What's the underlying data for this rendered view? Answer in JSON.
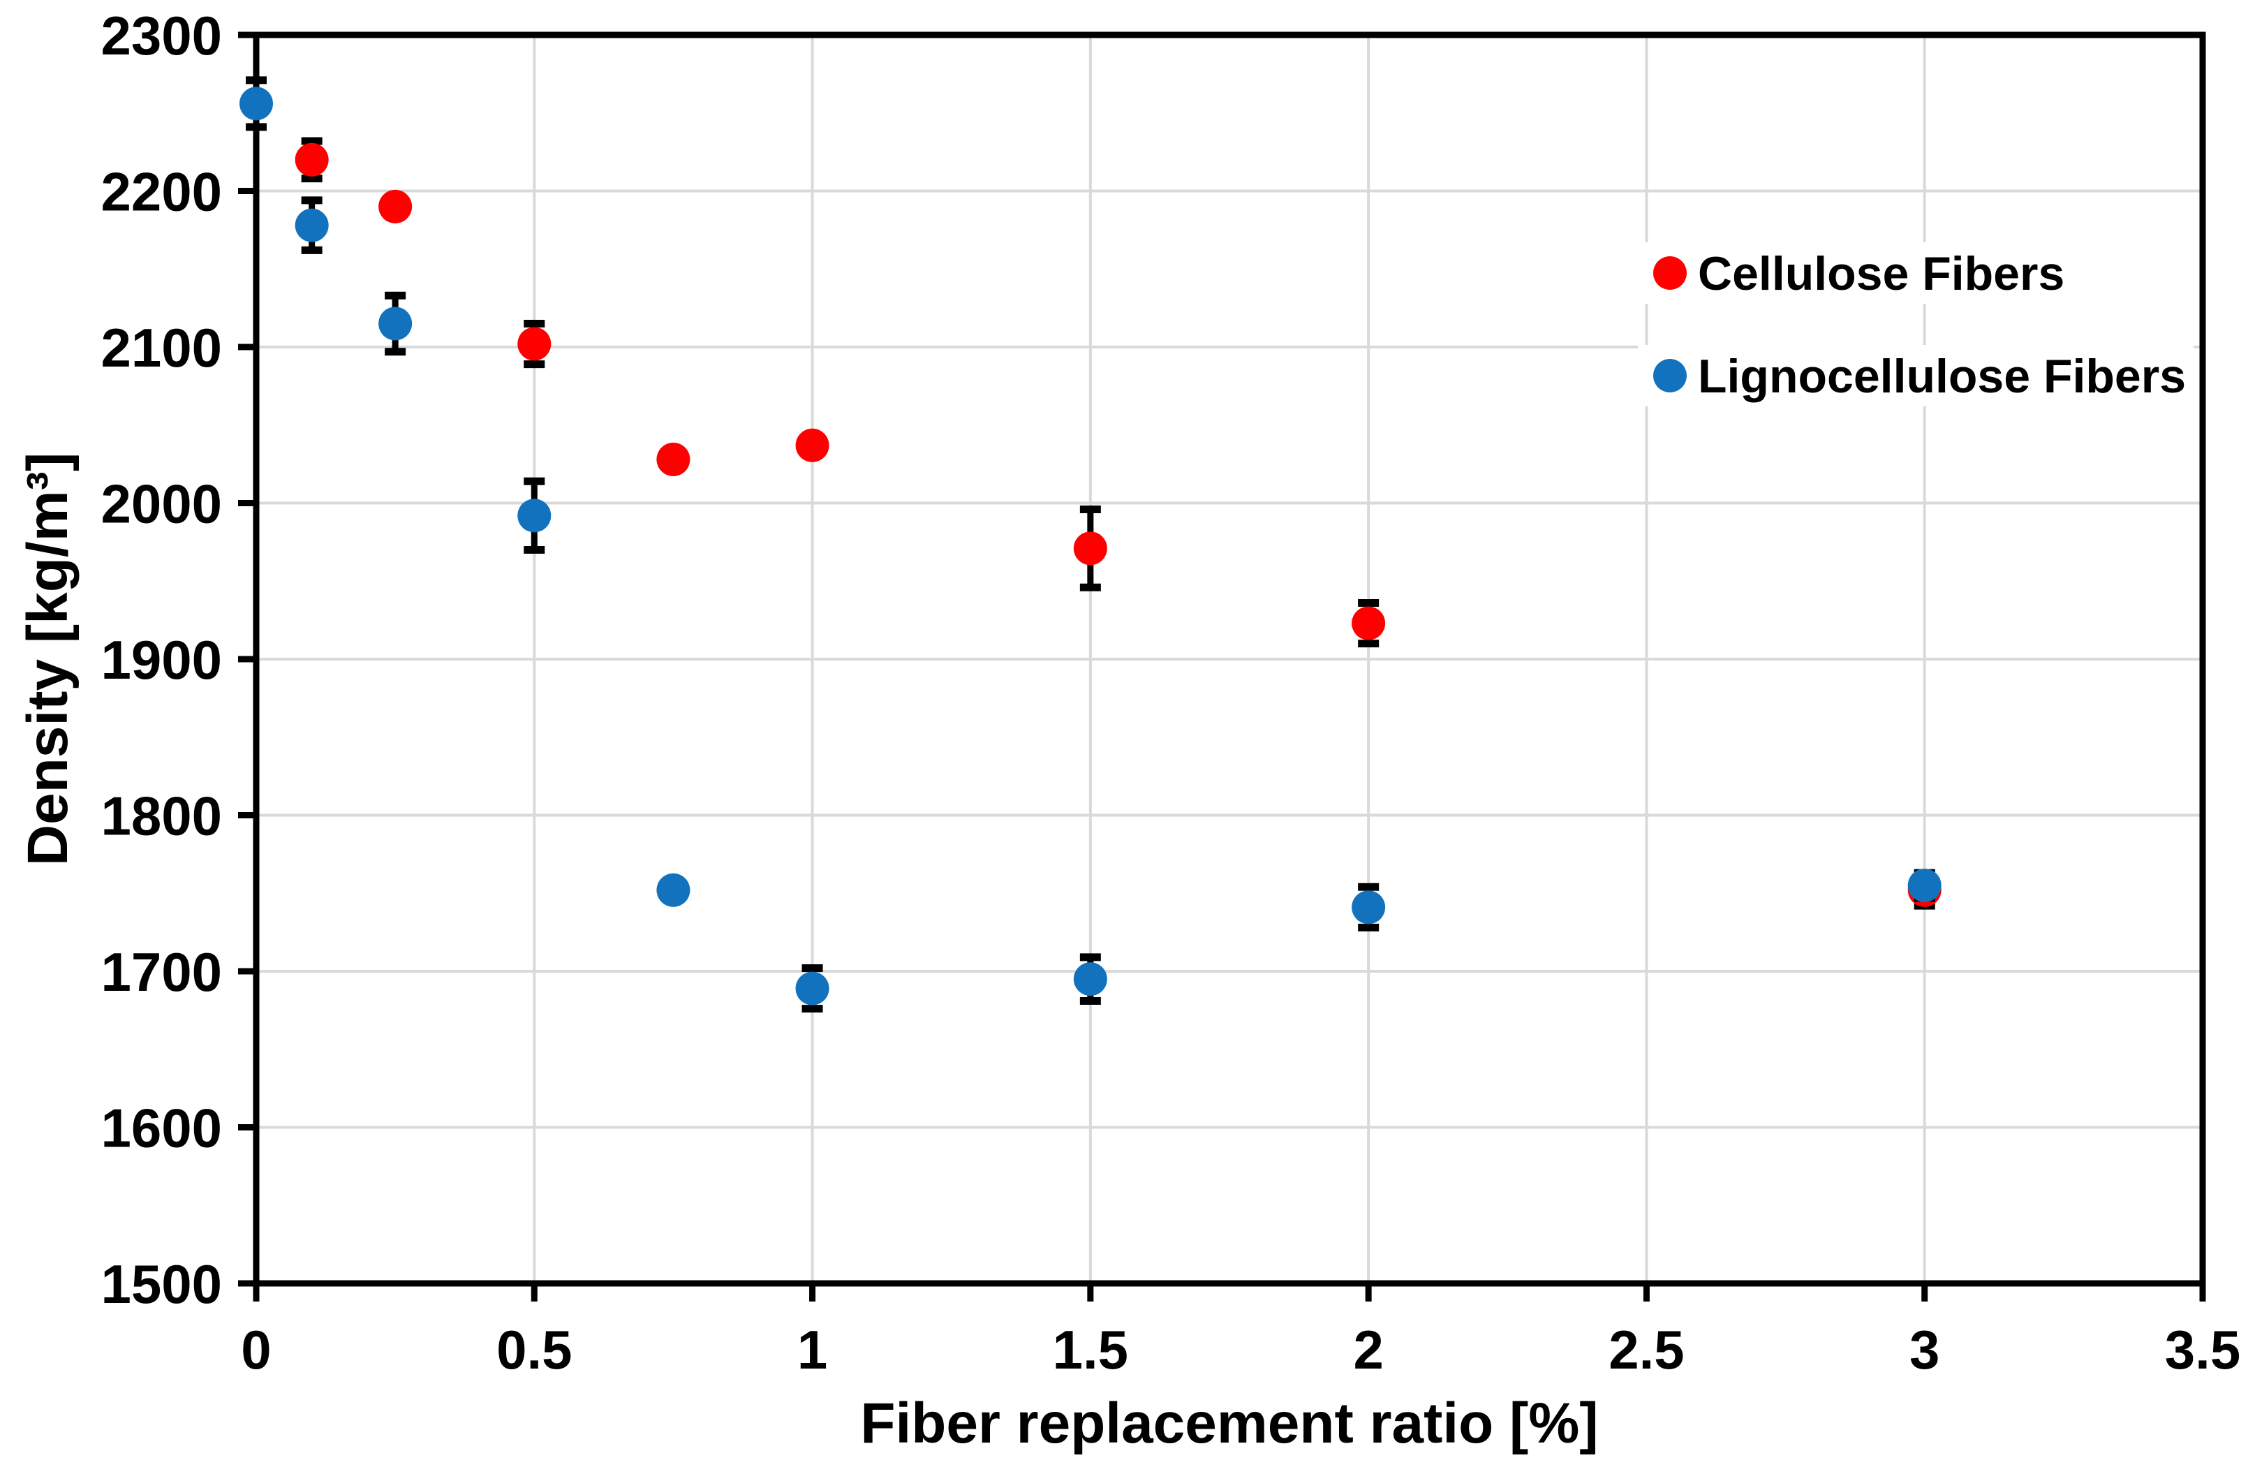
{
  "chart_data": {
    "type": "scatter",
    "title": "",
    "xlabel": "Fiber replacement ratio [%]",
    "ylabel": "Density [kg/m³]",
    "xlim": [
      0,
      3.5
    ],
    "ylim": [
      1500,
      2300
    ],
    "xticks": [
      {
        "v": 0,
        "label": "0"
      },
      {
        "v": 0.5,
        "label": "0.5"
      },
      {
        "v": 1,
        "label": "1"
      },
      {
        "v": 1.5,
        "label": "1.5"
      },
      {
        "v": 2,
        "label": "2"
      },
      {
        "v": 2.5,
        "label": "2.5"
      },
      {
        "v": 3,
        "label": "3"
      },
      {
        "v": 3.5,
        "label": "3.5"
      }
    ],
    "yticks": [
      {
        "v": 1500,
        "label": "1500"
      },
      {
        "v": 1600,
        "label": "1600"
      },
      {
        "v": 1700,
        "label": "1700"
      },
      {
        "v": 1800,
        "label": "1800"
      },
      {
        "v": 1900,
        "label": "1900"
      },
      {
        "v": 2000,
        "label": "2000"
      },
      {
        "v": 2100,
        "label": "2100"
      },
      {
        "v": 2200,
        "label": "2200"
      },
      {
        "v": 2300,
        "label": "2300"
      }
    ],
    "grid": {
      "on": true,
      "x_values": [
        0.5,
        1,
        1.5,
        2,
        2.5,
        3
      ],
      "y_values": [
        1600,
        1700,
        1800,
        1900,
        2000,
        2100,
        2200
      ],
      "color": "#D9D9D9"
    },
    "legend": {
      "position": "upper-right",
      "entries": [
        {
          "name": "Cellulose Fibers",
          "color": "#FF0000"
        },
        {
          "name": "Lignocellulose Fibers",
          "color": "#1272BD"
        }
      ]
    },
    "series": [
      {
        "name": "Cellulose Fibers",
        "color": "#FF0000",
        "points": [
          {
            "x": 0.1,
            "y": 2220,
            "err": 12
          },
          {
            "x": 0.25,
            "y": 2190,
            "err": null
          },
          {
            "x": 0.5,
            "y": 2102,
            "err": 13
          },
          {
            "x": 0.75,
            "y": 2028,
            "err": null
          },
          {
            "x": 1,
            "y": 2037,
            "err": null
          },
          {
            "x": 1.5,
            "y": 1971,
            "err": 25
          },
          {
            "x": 2,
            "y": 1923,
            "err": 13
          },
          {
            "x": 3,
            "y": 1752,
            "err": 10
          }
        ]
      },
      {
        "name": "Lignocellulose Fibers",
        "color": "#1272BD",
        "points": [
          {
            "x": 0,
            "y": 2256,
            "err": 15
          },
          {
            "x": 0.1,
            "y": 2178,
            "err": 16
          },
          {
            "x": 0.25,
            "y": 2115,
            "err": 18
          },
          {
            "x": 0.5,
            "y": 1992,
            "err": 22
          },
          {
            "x": 0.75,
            "y": 1752,
            "err": null
          },
          {
            "x": 1,
            "y": 1689,
            "err": 13
          },
          {
            "x": 1.5,
            "y": 1695,
            "err": 14
          },
          {
            "x": 2,
            "y": 1741,
            "err": 13
          },
          {
            "x": 3,
            "y": 1755,
            "err": 8
          }
        ]
      }
    ],
    "style": {
      "axis_color": "#000000",
      "background": "#FFFFFF",
      "marker_radius": 24,
      "error_cap_half_width": 15,
      "error_stroke_width": 9
    }
  }
}
